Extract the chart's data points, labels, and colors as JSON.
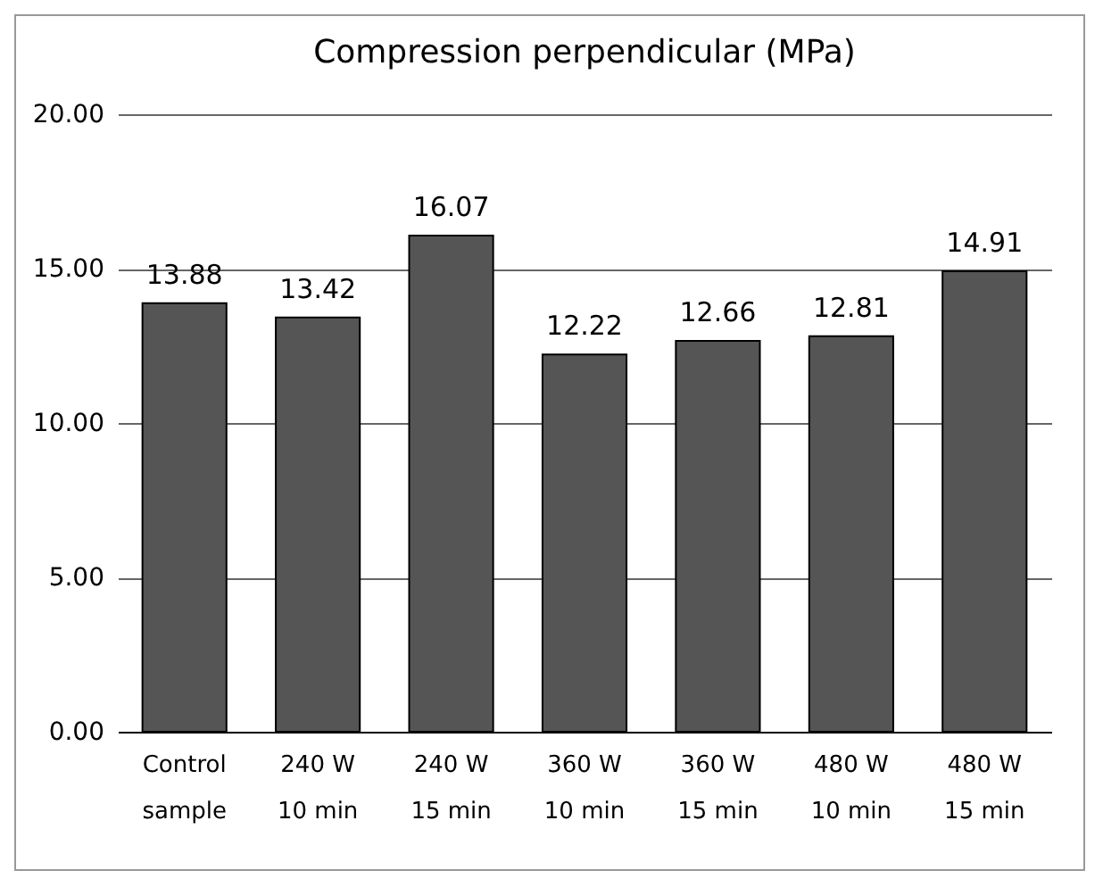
{
  "chart_data": {
    "type": "bar",
    "title": "Compression perpendicular (MPa)",
    "categories": [
      "Control sample",
      "240 W 10 min",
      "240 W 15 min",
      "360 W 10 min",
      "360 W 15 min",
      "480 W 10 min",
      "480 W 15 min"
    ],
    "values": [
      13.88,
      13.42,
      16.07,
      12.22,
      12.66,
      12.81,
      14.91
    ],
    "color": "#555555",
    "ylim": [
      0,
      20
    ],
    "yticks": [
      {
        "value": 0,
        "label": "0.00"
      },
      {
        "value": 5,
        "label": "5.00"
      },
      {
        "value": 10,
        "label": "10.00"
      },
      {
        "value": 15,
        "label": "15.00"
      },
      {
        "value": 20,
        "label": "20.00"
      }
    ],
    "grid": "y",
    "data_labels": true
  }
}
